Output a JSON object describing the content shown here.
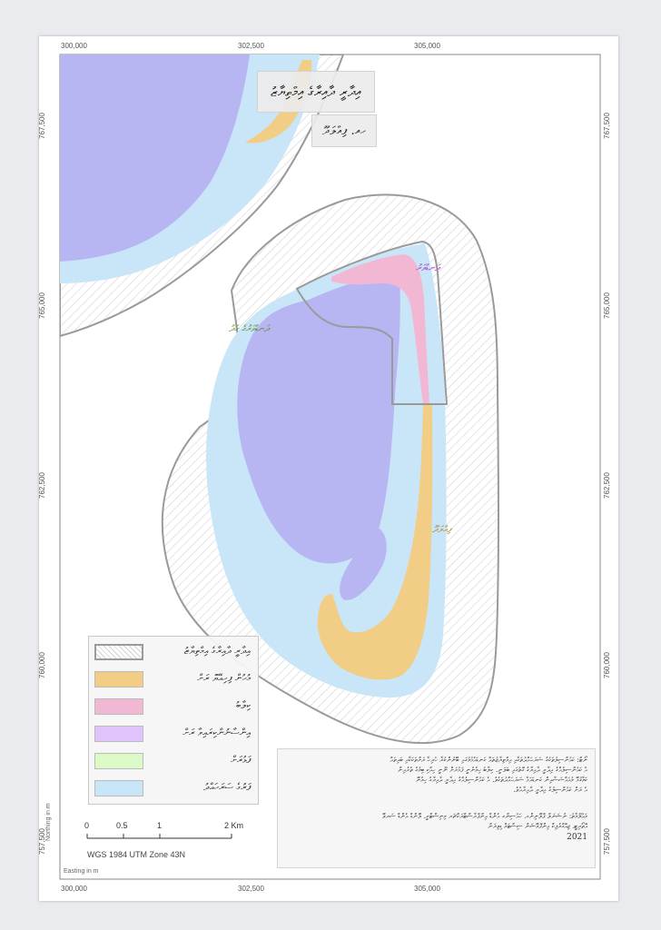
{
  "map": {
    "title": "އިދާރީ ދާއިރާގެ އިމްތިޔާޒު",
    "subtitle": "ހއ. ފިއްލަދޫ",
    "colors": {
      "reef_flat": "#c9e6f8",
      "lagoon": "#b8b6f2",
      "land": "#f2cd86",
      "mangrove": "#f2b8d3",
      "admin_boundary": "#9a9a9a",
      "background": "#ffffff"
    }
  },
  "grid": {
    "easting_ticks_top": [
      "300,000",
      "302,500",
      "305,000"
    ],
    "easting_ticks_bottom": [
      "300,000",
      "302,500",
      "305,000"
    ],
    "northing_ticks_left": [
      "767,500",
      "765,000",
      "762,500",
      "760,000",
      "757,500"
    ],
    "northing_ticks_right": [
      "767,500",
      "765,000",
      "762,500",
      "760,000",
      "757,500"
    ],
    "northing_title": "Northing in m",
    "easting_title": "Easting in m"
  },
  "labels": {
    "mangrove_area": "ދަނޑުވަރު",
    "boundary_line": "ދަނޑުވަރުގެ ހަދު",
    "island": "ފިއްލަދޫ"
  },
  "legend": [
    {
      "label": "އިދާރީ ދާއިރާގެ އިމްތިޔާޒު",
      "swatch": "hatch"
    },
    {
      "label": "މުހުން ފިހިއޭޔޮ ރަށް",
      "swatch": "land"
    },
    {
      "label": "ކިލާބު",
      "swatch": "mangrove"
    },
    {
      "label": "އިންސާނުންކިރައިވާ ރަށް",
      "swatch": "purple"
    },
    {
      "label": "ފަޅުރަށް",
      "swatch": "green"
    },
    {
      "label": "ފަރުގެ ސަރަހައްދު",
      "swatch": "reef"
    }
  ],
  "legend_colors": {
    "purple": "#e0c3fb",
    "green": "#dcfac7"
  },
  "note": {
    "lines": [
      "ނޯޓް: ކައުންސިލުތަކުގެ ސަރަޙައްދުތަކާއި އިމްތިޔާޒުތައް ކަނޑައެޅުމުގައި ބޭނުންކުރާ ހުރިހާ ރަށްތަކަކާއި ބައިތައް",
      "އެ ކައުންސިލެއްގެ އިދާރީ ދާއިރާގެ ގޮތުގައި ބަލަނީ. ކިލާބު ހިމެނެނީ ފަޅުރަށް ނޫނީ ހިއްކި ބިމުގެ ތެރެއިން",
      "ކަމާގުޅޭ މުއައްސަސާއިން ކަނޑައަޅާ ސަރަޙައްދުތަކެވެ. އެ ކައުންސިލެއްގެ އިދާރީ ދާއިރާގެ ހިމެނޭ",
      "އެ ރަށް ކައުންސިލުގެ އިދާރީ ދާއިރާއެވެ."
    ],
    "lines2": [
      "މަޢުލޫމާތު: ނެޝަނަލް ޕްލޭނިންގ، ހައުސިންގ އެންޑް އިންފްރާސްޓްރަކްޗަރ މިނިސްޓްރީ، ލޭންޑް އެންޑް ސަރވޭ",
      "އޮތޯރިޓީ، ޖިއޮގްރެފިކް އިންފޮމޭޝަން ސިސްޓަމް ޑިވިޜަން"
    ],
    "year": "2021"
  },
  "scalebar": {
    "ticks": [
      "0",
      "0.5",
      "1",
      "2 Km"
    ],
    "crs": "WGS 1984 UTM Zone 43N"
  }
}
